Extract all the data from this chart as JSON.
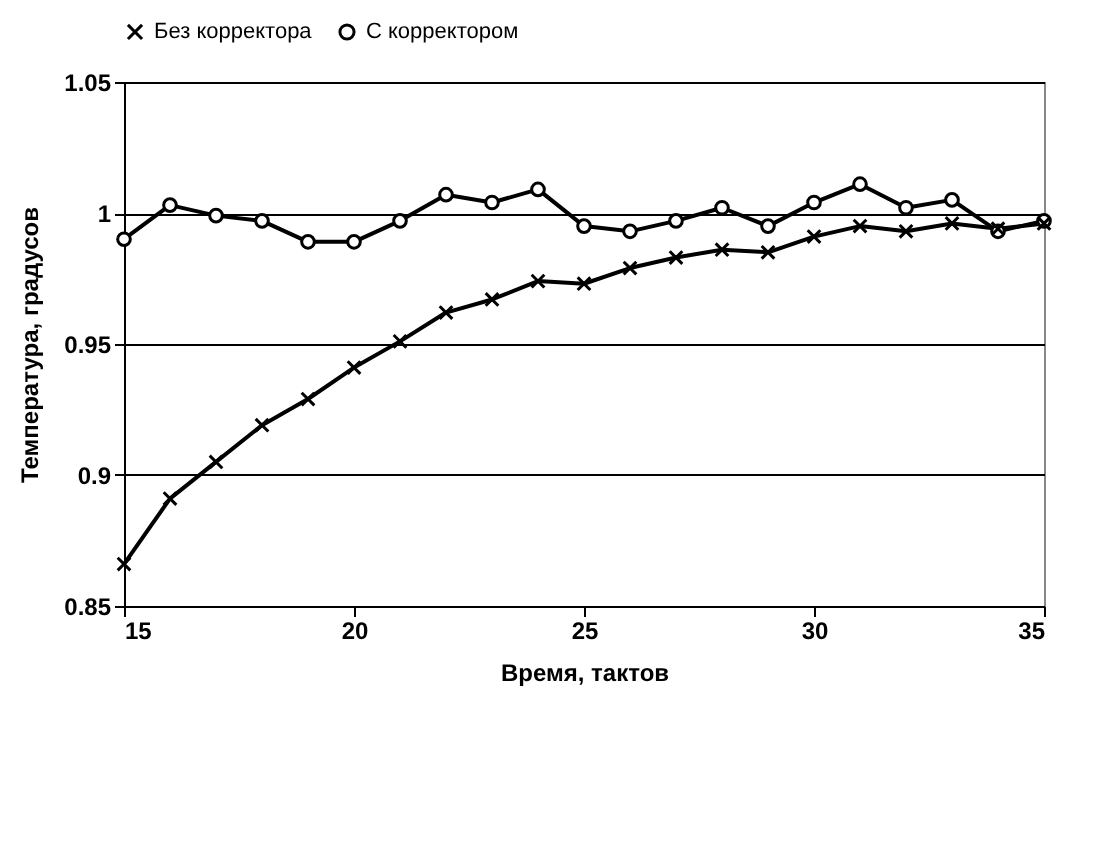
{
  "chart_data": {
    "type": "line",
    "xlabel": "Время, тактов",
    "ylabel": "Температура, градусов",
    "x": [
      15,
      16,
      17,
      18,
      19,
      20,
      21,
      22,
      23,
      24,
      25,
      26,
      27,
      28,
      29,
      30,
      31,
      32,
      33,
      34,
      35
    ],
    "series": [
      {
        "name": "Без корректора",
        "color": "#000000",
        "marker": "cross",
        "values": [
          0.866,
          0.891,
          0.905,
          0.919,
          0.929,
          0.941,
          0.951,
          0.962,
          0.967,
          0.974,
          0.973,
          0.979,
          0.983,
          0.986,
          0.985,
          0.991,
          0.995,
          0.993,
          0.996,
          0.994,
          0.996
        ]
      },
      {
        "name": "С корректором",
        "color": "#000000",
        "marker": "circle",
        "values": [
          0.99,
          1.003,
          0.999,
          0.997,
          0.989,
          0.989,
          0.997,
          1.007,
          1.004,
          1.009,
          0.995,
          0.993,
          0.997,
          1.002,
          0.995,
          1.004,
          1.011,
          1.002,
          1.005,
          0.993,
          0.997
        ]
      }
    ],
    "xlim": [
      15,
      35
    ],
    "xticks": [
      15,
      20,
      25,
      30,
      35
    ],
    "ylim": [
      0.85,
      1.05
    ],
    "yticks": [
      0.85,
      0.9,
      0.95,
      1,
      1.05
    ],
    "grid": "y",
    "legend": "top"
  }
}
